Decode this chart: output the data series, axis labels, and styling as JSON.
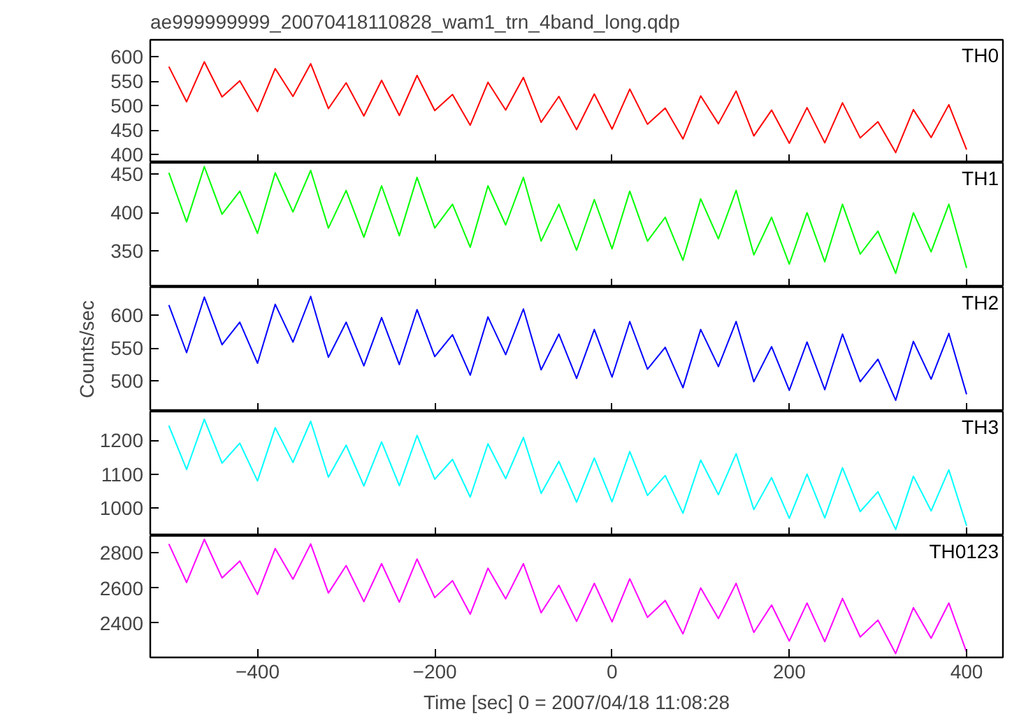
{
  "chart_data": [
    {
      "type": "line",
      "title": "ae999999999_20070418110828_wam1_trn_4band_long.qdp",
      "x": [
        -500,
        -480,
        -460,
        -440,
        -420,
        -400,
        -380,
        -360,
        -340,
        -320,
        -300,
        -280,
        -260,
        -240,
        -220,
        -200,
        -180,
        -160,
        -140,
        -120,
        -100,
        -80,
        -60,
        -40,
        -20,
        0,
        20,
        40,
        60,
        80,
        100,
        120,
        140,
        160,
        180,
        200,
        220,
        240,
        260,
        280,
        300,
        320,
        340,
        360,
        380,
        400
      ],
      "series": [
        {
          "name": "TH0",
          "color": "#ff0000",
          "values": [
            580,
            508,
            590,
            518,
            551,
            488,
            576,
            519,
            586,
            494,
            547,
            479,
            552,
            480,
            562,
            490,
            523,
            460,
            548,
            491,
            558,
            466,
            519,
            451,
            524,
            452,
            534,
            462,
            495,
            432,
            520,
            463,
            530,
            438,
            491,
            423,
            496,
            424,
            506,
            434,
            467,
            404,
            492,
            435,
            502,
            410
          ]
        }
      ],
      "xlim": [
        -521,
        441
      ],
      "xticks": [
        -400,
        -200,
        0,
        200,
        400
      ],
      "ylim": [
        383,
        635
      ],
      "yticks": [
        400,
        450,
        500,
        550,
        600
      ],
      "tick_labels": "y",
      "grid": false
    },
    {
      "type": "line",
      "x": [
        -500,
        -480,
        -460,
        -440,
        -420,
        -400,
        -380,
        -360,
        -340,
        -320,
        -300,
        -280,
        -260,
        -240,
        -220,
        -200,
        -180,
        -160,
        -140,
        -120,
        -100,
        -80,
        -60,
        -40,
        -20,
        0,
        20,
        40,
        60,
        80,
        100,
        120,
        140,
        160,
        180,
        200,
        220,
        240,
        260,
        280,
        300,
        320,
        340,
        360,
        380,
        400
      ],
      "series": [
        {
          "name": "TH1",
          "color": "#00ff00",
          "values": [
            452,
            388,
            460,
            398,
            428,
            373,
            452,
            401,
            455,
            380,
            429,
            368,
            435,
            370,
            446,
            380,
            411,
            355,
            435,
            384,
            446,
            363,
            411,
            351,
            417,
            353,
            428,
            363,
            394,
            338,
            418,
            366,
            429,
            345,
            394,
            333,
            400,
            336,
            411,
            346,
            376,
            321,
            400,
            349,
            411,
            328
          ]
        }
      ],
      "xlim": [
        -521,
        441
      ],
      "xticks": [
        -400,
        -200,
        0,
        200,
        400
      ],
      "ylim": [
        303,
        465
      ],
      "yticks": [
        350,
        400,
        450
      ],
      "tick_labels": "y",
      "grid": false
    },
    {
      "type": "line",
      "ylabel": "Counts/sec",
      "x": [
        -500,
        -480,
        -460,
        -440,
        -420,
        -400,
        -380,
        -360,
        -340,
        -320,
        -300,
        -280,
        -260,
        -240,
        -220,
        -200,
        -180,
        -160,
        -140,
        -120,
        -100,
        -80,
        -60,
        -40,
        -20,
        0,
        20,
        40,
        60,
        80,
        100,
        120,
        140,
        160,
        180,
        200,
        220,
        240,
        260,
        280,
        300,
        320,
        340,
        360,
        380,
        400
      ],
      "series": [
        {
          "name": "TH2",
          "color": "#0000ff",
          "values": [
            615,
            543,
            627,
            555,
            589,
            527,
            616,
            559,
            628,
            536,
            589,
            523,
            596,
            525,
            608,
            537,
            570,
            509,
            597,
            540,
            609,
            517,
            571,
            504,
            578,
            506,
            590,
            518,
            551,
            490,
            578,
            522,
            590,
            499,
            552,
            486,
            559,
            487,
            571,
            499,
            533,
            471,
            560,
            503,
            572,
            480
          ]
        }
      ],
      "xlim": [
        -521,
        441
      ],
      "xticks": [
        -400,
        -200,
        0,
        200,
        400
      ],
      "ylim": [
        454,
        642
      ],
      "yticks": [
        500,
        550,
        600
      ],
      "tick_labels": "y",
      "grid": false
    },
    {
      "type": "line",
      "x": [
        -500,
        -480,
        -460,
        -440,
        -420,
        -400,
        -380,
        -360,
        -340,
        -320,
        -300,
        -280,
        -260,
        -240,
        -220,
        -200,
        -180,
        -160,
        -140,
        -120,
        -100,
        -80,
        -60,
        -40,
        -20,
        0,
        20,
        40,
        60,
        80,
        100,
        120,
        140,
        160,
        180,
        200,
        220,
        240,
        260,
        280,
        300,
        320,
        340,
        360,
        380,
        400
      ],
      "series": [
        {
          "name": "TH3",
          "color": "#00ffff",
          "values": [
            1244,
            1114,
            1263,
            1133,
            1192,
            1080,
            1238,
            1135,
            1257,
            1091,
            1186,
            1065,
            1196,
            1066,
            1215,
            1085,
            1144,
            1032,
            1190,
            1087,
            1209,
            1043,
            1138,
            1017,
            1148,
            1018,
            1167,
            1037,
            1096,
            984,
            1142,
            1039,
            1161,
            995,
            1090,
            969,
            1100,
            970,
            1119,
            989,
            1048,
            936,
            1094,
            991,
            1113,
            947
          ]
        }
      ],
      "xlim": [
        -521,
        441
      ],
      "xticks": [
        -400,
        -200,
        0,
        200,
        400
      ],
      "ylim": [
        917,
        1286
      ],
      "yticks": [
        1000,
        1100,
        1200
      ],
      "tick_labels": "y",
      "grid": false
    },
    {
      "type": "line",
      "xlabel": "Time [sec] 0 = 2007/04/18 11:08:28",
      "x": [
        -500,
        -480,
        -460,
        -440,
        -420,
        -400,
        -380,
        -360,
        -340,
        -320,
        -300,
        -280,
        -260,
        -240,
        -220,
        -200,
        -180,
        -160,
        -140,
        -120,
        -100,
        -80,
        -60,
        -40,
        -20,
        0,
        20,
        40,
        60,
        80,
        100,
        120,
        140,
        160,
        180,
        200,
        220,
        240,
        260,
        280,
        300,
        320,
        340,
        360,
        380,
        400
      ],
      "series": [
        {
          "name": "TH0123",
          "color": "#ff00ff",
          "values": [
            2850,
            2631,
            2876,
            2657,
            2753,
            2563,
            2824,
            2650,
            2850,
            2571,
            2727,
            2522,
            2738,
            2519,
            2764,
            2545,
            2641,
            2451,
            2712,
            2538,
            2738,
            2459,
            2615,
            2410,
            2626,
            2407,
            2652,
            2433,
            2529,
            2339,
            2600,
            2426,
            2626,
            2347,
            2503,
            2298,
            2514,
            2295,
            2540,
            2321,
            2417,
            2227,
            2488,
            2314,
            2514,
            2235
          ]
        }
      ],
      "xlim": [
        -521,
        441
      ],
      "xticks": [
        -400,
        -200,
        0,
        200,
        400
      ],
      "ylim": [
        2205,
        2896
      ],
      "yticks": [
        2400,
        2600,
        2800
      ],
      "grid": false
    }
  ]
}
